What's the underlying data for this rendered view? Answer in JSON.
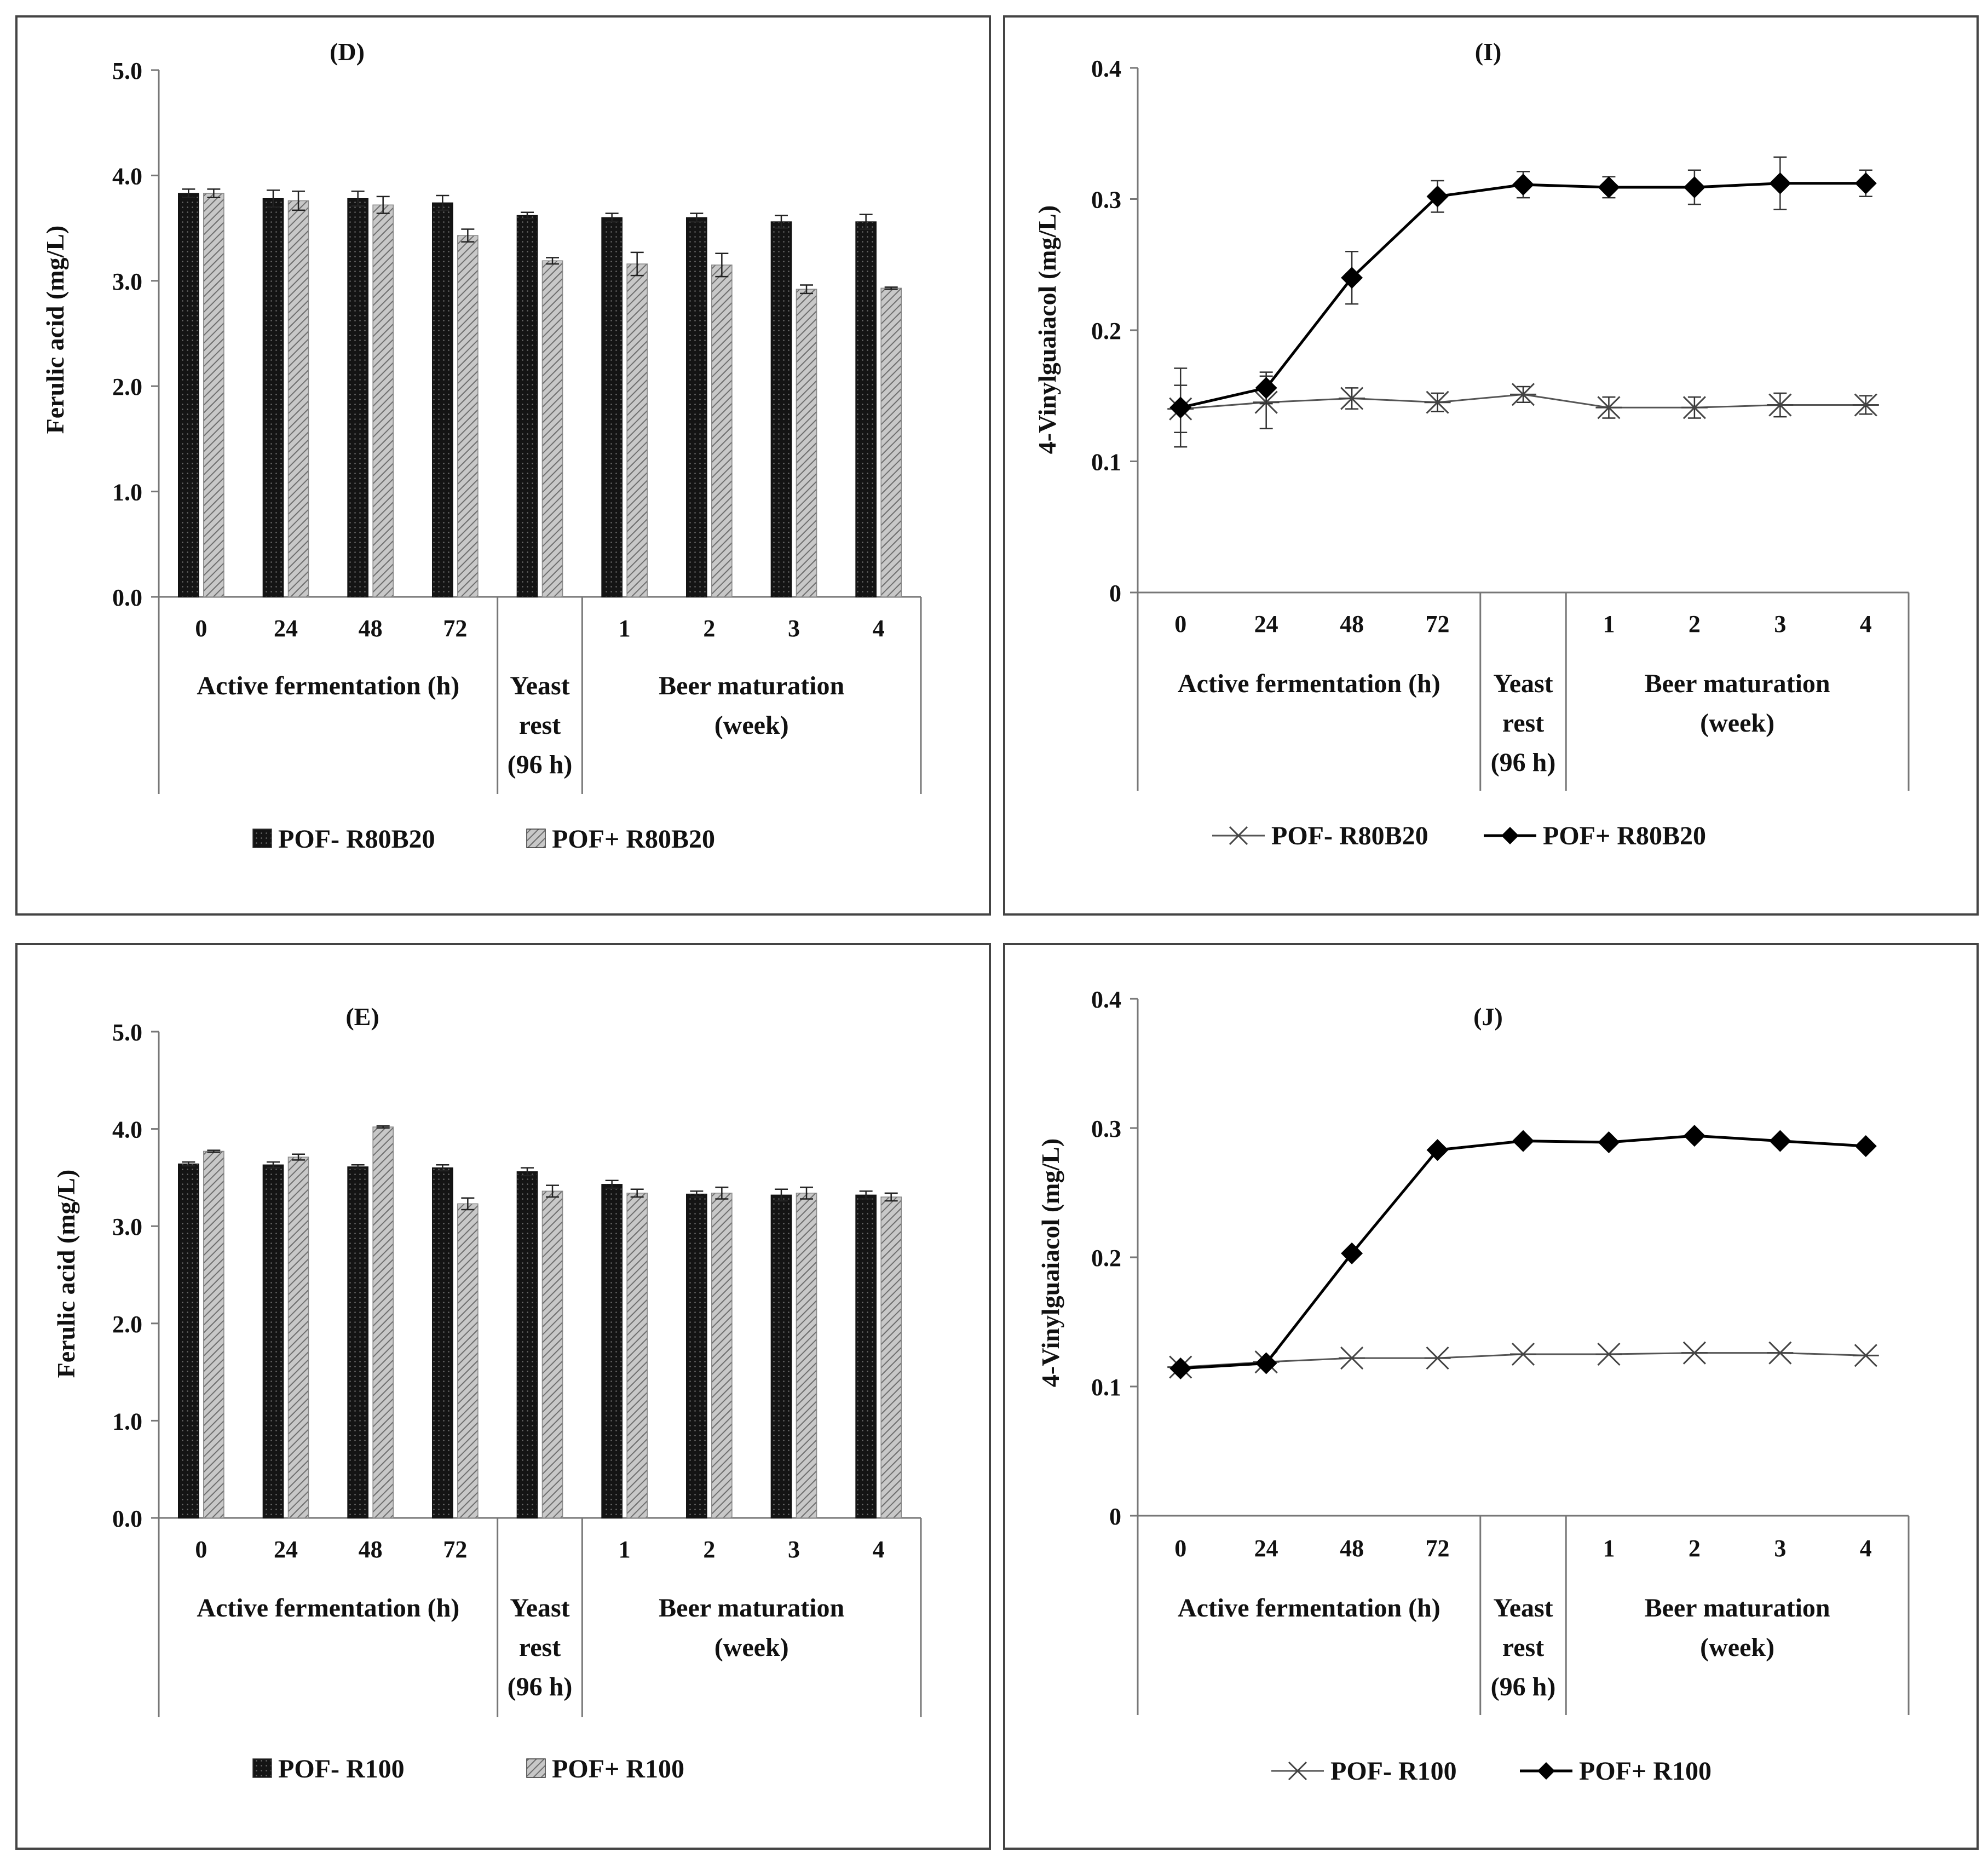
{
  "panels": [
    {
      "id": "D",
      "chart_data": {
        "type": "bar",
        "title": "(D)",
        "ylabel": "Ferulic acid (mg/L)",
        "ylim": [
          0,
          5
        ],
        "yticks": [
          "0.0",
          "1.0",
          "2.0",
          "3.0",
          "4.0",
          "5.0"
        ],
        "yticks_values": [
          0,
          1,
          2,
          3,
          4,
          5
        ],
        "categories": [
          "0",
          "24",
          "48",
          "72",
          "",
          "1",
          "2",
          "3",
          "4"
        ],
        "groups": [
          {
            "label_lines": [
              "Active fermentation (h)"
            ],
            "from": 0,
            "to": 3
          },
          {
            "label_lines": [
              "Yeast",
              "rest",
              "(96 h)"
            ],
            "from": 4,
            "to": 4
          },
          {
            "label_lines": [
              "Beer maturation",
              "(week)"
            ],
            "from": 5,
            "to": 8
          }
        ],
        "series": [
          {
            "name": "POF- R80B20",
            "style": "dark",
            "values": [
              3.83,
              3.78,
              3.78,
              3.74,
              3.62,
              3.6,
              3.6,
              3.56,
              3.56
            ],
            "errors": [
              0.04,
              0.08,
              0.07,
              0.07,
              0.03,
              0.04,
              0.04,
              0.06,
              0.07
            ]
          },
          {
            "name": "POF+ R80B20",
            "style": "light",
            "values": [
              3.83,
              3.76,
              3.72,
              3.43,
              3.19,
              3.16,
              3.15,
              2.92,
              2.93
            ],
            "errors": [
              0.04,
              0.09,
              0.08,
              0.06,
              0.03,
              0.11,
              0.11,
              0.04,
              0.01
            ]
          }
        ]
      }
    },
    {
      "id": "I",
      "chart_data": {
        "type": "line",
        "title": "(I)",
        "ylabel": "4-Vinylguaiacol (mg/L)",
        "ylim": [
          0,
          0.4
        ],
        "yticks": [
          "0",
          "0.1",
          "0.2",
          "0.3",
          "0.4"
        ],
        "yticks_values": [
          0,
          0.1,
          0.2,
          0.3,
          0.4
        ],
        "categories": [
          "0",
          "24",
          "48",
          "72",
          "",
          "1",
          "2",
          "3",
          "4"
        ],
        "groups": [
          {
            "label_lines": [
              "Active fermentation (h)"
            ],
            "from": 0,
            "to": 3
          },
          {
            "label_lines": [
              "Yeast",
              "rest",
              "(96 h)"
            ],
            "from": 4,
            "to": 4
          },
          {
            "label_lines": [
              "Beer maturation",
              "(week)"
            ],
            "from": 5,
            "to": 8
          }
        ],
        "series": [
          {
            "name": "POF- R80B20",
            "marker": "asterisk",
            "values": [
              0.14,
              0.145,
              0.148,
              0.145,
              0.151,
              0.141,
              0.141,
              0.143,
              0.143
            ],
            "errors": [
              0.018,
              0.02,
              0.008,
              0.007,
              0.006,
              0.008,
              0.008,
              0.009,
              0.007
            ]
          },
          {
            "name": "POF+ R80B20",
            "marker": "diamond",
            "values": [
              0.141,
              0.156,
              0.24,
              0.302,
              0.311,
              0.309,
              0.309,
              0.312,
              0.312
            ],
            "errors": [
              0.03,
              0.012,
              0.02,
              0.012,
              0.01,
              0.008,
              0.013,
              0.02,
              0.01
            ]
          }
        ]
      }
    },
    {
      "id": "E",
      "chart_data": {
        "type": "bar",
        "title": "(E)",
        "ylabel": "Ferulic acid (mg/L)",
        "ylim": [
          0,
          5
        ],
        "yticks": [
          "0.0",
          "1.0",
          "2.0",
          "3.0",
          "4.0",
          "5.0"
        ],
        "yticks_values": [
          0,
          1,
          2,
          3,
          4,
          5
        ],
        "categories": [
          "0",
          "24",
          "48",
          "72",
          "",
          "1",
          "2",
          "3",
          "4"
        ],
        "groups": [
          {
            "label_lines": [
              "Active fermentation (h)"
            ],
            "from": 0,
            "to": 3
          },
          {
            "label_lines": [
              "Yeast",
              "rest",
              "(96 h)"
            ],
            "from": 4,
            "to": 4
          },
          {
            "label_lines": [
              "Beer maturation",
              "(week)"
            ],
            "from": 5,
            "to": 8
          }
        ],
        "series": [
          {
            "name": "POF- R100",
            "style": "dark",
            "values": [
              3.64,
              3.63,
              3.61,
              3.6,
              3.56,
              3.43,
              3.33,
              3.32,
              3.32
            ],
            "errors": [
              0.02,
              0.03,
              0.02,
              0.03,
              0.04,
              0.04,
              0.03,
              0.06,
              0.04
            ]
          },
          {
            "name": "POF+ R100",
            "style": "light",
            "values": [
              3.77,
              3.71,
              4.02,
              3.23,
              3.36,
              3.34,
              3.34,
              3.34,
              3.3
            ],
            "errors": [
              0.01,
              0.03,
              0.01,
              0.06,
              0.06,
              0.04,
              0.06,
              0.06,
              0.04
            ]
          }
        ]
      }
    },
    {
      "id": "J",
      "chart_data": {
        "type": "line",
        "title": "(J)",
        "ylabel": "4-Vinylguaiacol (mg/L)",
        "ylim": [
          0,
          0.4
        ],
        "yticks": [
          "0",
          "0.1",
          "0.2",
          "0.3",
          "0.4"
        ],
        "yticks_values": [
          0,
          0.1,
          0.2,
          0.3,
          0.4
        ],
        "categories": [
          "0",
          "24",
          "48",
          "72",
          "",
          "1",
          "2",
          "3",
          "4"
        ],
        "groups": [
          {
            "label_lines": [
              "Active fermentation (h)"
            ],
            "from": 0,
            "to": 3
          },
          {
            "label_lines": [
              "Yeast",
              "rest",
              "(96 h)"
            ],
            "from": 4,
            "to": 4
          },
          {
            "label_lines": [
              "Beer maturation",
              "(week)"
            ],
            "from": 5,
            "to": 8
          }
        ],
        "series": [
          {
            "name": "POF- R100",
            "marker": "asterisk",
            "values": [
              0.115,
              0.119,
              0.122,
              0.122,
              0.125,
              0.125,
              0.126,
              0.126,
              0.124
            ],
            "errors": [
              0,
              0,
              0,
              0,
              0,
              0,
              0,
              0,
              0
            ]
          },
          {
            "name": "POF+ R100",
            "marker": "diamond",
            "values": [
              0.114,
              0.118,
              0.203,
              0.283,
              0.29,
              0.289,
              0.294,
              0.29,
              0.286
            ],
            "errors": [
              0,
              0,
              0,
              0,
              0,
              0,
              0,
              0,
              0
            ]
          }
        ]
      }
    }
  ]
}
